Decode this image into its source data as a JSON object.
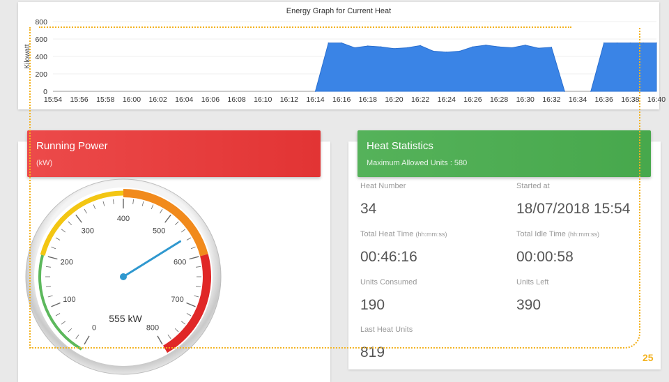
{
  "chart_data": {
    "type": "area",
    "title": "Energy Graph for Current Heat",
    "ylabel": "Kilowatt",
    "xlabel": "",
    "ylim": [
      0,
      800
    ],
    "yticks": [
      "800",
      "600",
      "400",
      "200",
      "0"
    ],
    "xticks": [
      "15:54",
      "15:56",
      "15:58",
      "16:00",
      "16:02",
      "16:04",
      "16:06",
      "16:08",
      "16:10",
      "16:12",
      "16:14",
      "16:16",
      "16:18",
      "16:20",
      "16:22",
      "16:24",
      "16:26",
      "16:28",
      "16:30",
      "16:32",
      "16:34",
      "16:36",
      "16:38",
      "16:40"
    ],
    "series": [
      {
        "color": "#3a84e6",
        "points": [
          [
            "16:14",
            0
          ],
          [
            "16:15",
            555
          ],
          [
            "16:16",
            555
          ],
          [
            "16:17",
            500
          ],
          [
            "16:18",
            520
          ],
          [
            "16:19",
            510
          ],
          [
            "16:20",
            490
          ],
          [
            "16:21",
            500
          ],
          [
            "16:22",
            525
          ],
          [
            "16:23",
            460
          ],
          [
            "16:24",
            450
          ],
          [
            "16:25",
            460
          ],
          [
            "16:26",
            510
          ],
          [
            "16:27",
            530
          ],
          [
            "16:28",
            510
          ],
          [
            "16:29",
            500
          ],
          [
            "16:30",
            530
          ],
          [
            "16:31",
            495
          ],
          [
            "16:32",
            505
          ],
          [
            "16:33",
            0
          ],
          [
            "16:35",
            0
          ],
          [
            "16:36",
            555
          ],
          [
            "16:37",
            555
          ],
          [
            "16:38",
            555
          ],
          [
            "16:39",
            555
          ],
          [
            "16:40",
            555
          ]
        ]
      }
    ]
  },
  "running_power": {
    "title": "Running Power",
    "unit": "(kW)",
    "gauge": {
      "min": 0,
      "max": 800,
      "value": 555,
      "value_label": "555 kW",
      "tick_labels": [
        "0",
        "100",
        "200",
        "300",
        "400",
        "500",
        "600",
        "700",
        "800"
      ],
      "bands": [
        {
          "from": 0,
          "to": 200,
          "color": "#5cb85c"
        },
        {
          "from": 200,
          "to": 400,
          "color": "#f3c613"
        },
        {
          "from": 400,
          "to": 600,
          "color": "#f18a1c"
        },
        {
          "from": 600,
          "to": 800,
          "color": "#e02727"
        }
      ],
      "needle_color": "#2f98cf"
    }
  },
  "heat_statistics": {
    "title": "Heat Statistics",
    "subtitle": "Maximum Allowed Units : 580",
    "heat_number_label": "Heat Number",
    "heat_number": "34",
    "started_at_label": "Started at",
    "started_at": "18/07/2018 15:54",
    "total_heat_time_label": "Total Heat Time",
    "total_heat_time_hint": "(hh:mm:ss)",
    "total_heat_time": "00:46:16",
    "total_idle_time_label": "Total Idle Time",
    "total_idle_time_hint": "(hh:mm:ss)",
    "total_idle_time": "00:00:58",
    "units_consumed_label": "Units Consumed",
    "units_consumed": "190",
    "units_left_label": "Units Left",
    "units_left": "390",
    "last_heat_units_label": "Last Heat Units",
    "last_heat_units": "819"
  },
  "badge": "25",
  "colors": {
    "accent_dotted": "#f3b21f",
    "red": "#e23434",
    "green": "#47a84c"
  }
}
